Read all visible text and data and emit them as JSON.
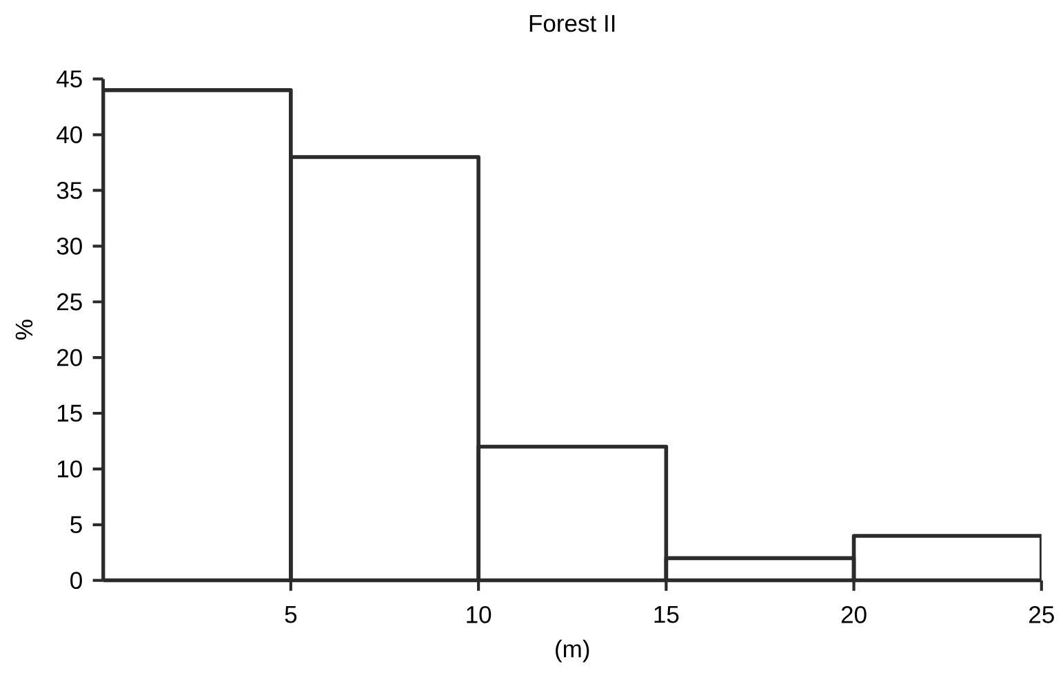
{
  "chart_data": {
    "type": "histogram",
    "title": "Forest II",
    "xlabel": "(m)",
    "ylabel": "%",
    "bins": [
      0,
      5,
      10,
      15,
      20,
      25
    ],
    "values": [
      44,
      38,
      12,
      2,
      4
    ],
    "color": "#2b2b2b",
    "xlim": [
      0,
      25
    ],
    "xticks": [
      5,
      10,
      15,
      20,
      25
    ],
    "ylim": [
      0,
      45
    ],
    "yticks": [
      0,
      5,
      10,
      15,
      20,
      25,
      30,
      35,
      40,
      45
    ]
  }
}
